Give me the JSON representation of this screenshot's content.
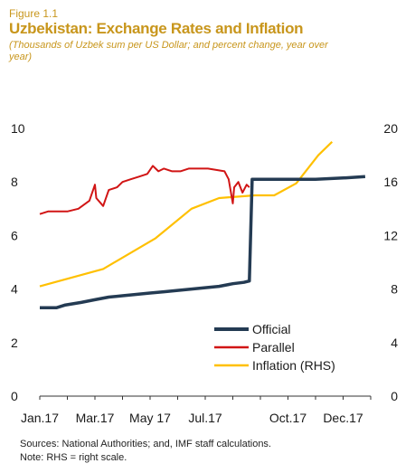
{
  "figure_label": "Figure 1.1",
  "title": "Uzbekistan: Exchange Rates and Inflation",
  "subtitle": "(Thousands of Uzbek sum per US Dollar; and percent change, year over year)",
  "source_lines": [
    "Sources: National Authorities;  and, IMF staff calculations.",
    "Note: RHS = right scale."
  ],
  "colors": {
    "official": "#243b53",
    "parallel": "#d11515",
    "inflation": "#ffc000",
    "text": "#1a1a1a"
  },
  "chart_data": {
    "type": "line",
    "x_tick_labels": [
      "Jan.17",
      "Mar.17",
      "May 17",
      "Jul.17",
      "Oct.17",
      "Dec.17"
    ],
    "x_tick_positions": [
      0,
      2,
      4,
      6,
      9,
      11
    ],
    "xlim": [
      0,
      12
    ],
    "ylim_left": [
      0,
      10
    ],
    "yticks_left": [
      "0",
      "2",
      "4",
      "6",
      "8",
      "10"
    ],
    "ylim_right": [
      0,
      20
    ],
    "yticks_right": [
      "0",
      "4",
      "8",
      "12",
      "16",
      "20"
    ],
    "legend_position": "bottom-right",
    "series": [
      {
        "name": "Official",
        "axis": "left",
        "points": [
          [
            0,
            3.3
          ],
          [
            0.6,
            3.3
          ],
          [
            0.9,
            3.4
          ],
          [
            1.5,
            3.5
          ],
          [
            2.0,
            3.6
          ],
          [
            2.5,
            3.7
          ],
          [
            3.0,
            3.75
          ],
          [
            3.5,
            3.8
          ],
          [
            4.0,
            3.85
          ],
          [
            4.5,
            3.9
          ],
          [
            5.0,
            3.95
          ],
          [
            5.5,
            4.0
          ],
          [
            6.0,
            4.05
          ],
          [
            6.5,
            4.1
          ],
          [
            7.0,
            4.2
          ],
          [
            7.4,
            4.25
          ],
          [
            7.6,
            4.3
          ],
          [
            7.7,
            8.1
          ],
          [
            8.5,
            8.1
          ],
          [
            9.0,
            8.1
          ],
          [
            10.0,
            8.1
          ],
          [
            11.0,
            8.15
          ],
          [
            11.8,
            8.2
          ]
        ]
      },
      {
        "name": "Parallel",
        "axis": "left",
        "points": [
          [
            0,
            6.8
          ],
          [
            0.3,
            6.9
          ],
          [
            0.6,
            6.9
          ],
          [
            1.0,
            6.9
          ],
          [
            1.4,
            7.0
          ],
          [
            1.8,
            7.3
          ],
          [
            2.0,
            7.9
          ],
          [
            2.05,
            7.4
          ],
          [
            2.3,
            7.1
          ],
          [
            2.5,
            7.7
          ],
          [
            2.8,
            7.8
          ],
          [
            3.0,
            8.0
          ],
          [
            3.3,
            8.1
          ],
          [
            3.6,
            8.2
          ],
          [
            3.9,
            8.3
          ],
          [
            4.1,
            8.6
          ],
          [
            4.3,
            8.4
          ],
          [
            4.5,
            8.5
          ],
          [
            4.8,
            8.4
          ],
          [
            5.1,
            8.4
          ],
          [
            5.4,
            8.5
          ],
          [
            5.8,
            8.5
          ],
          [
            6.1,
            8.5
          ],
          [
            6.4,
            8.45
          ],
          [
            6.7,
            8.4
          ],
          [
            6.85,
            8.1
          ],
          [
            7.0,
            7.2
          ],
          [
            7.05,
            7.8
          ],
          [
            7.2,
            8.0
          ],
          [
            7.35,
            7.6
          ],
          [
            7.5,
            7.9
          ],
          [
            7.6,
            7.8
          ]
        ]
      },
      {
        "name": "Inflation (RHS)",
        "axis": "right",
        "points": [
          [
            0,
            8.2
          ],
          [
            2.3,
            9.5
          ],
          [
            4.2,
            11.8
          ],
          [
            5.5,
            14.0
          ],
          [
            6.5,
            14.8
          ],
          [
            7.8,
            15.0
          ],
          [
            8.5,
            15.0
          ],
          [
            9.3,
            15.9
          ],
          [
            10.1,
            18.0
          ],
          [
            10.6,
            19.0
          ]
        ]
      }
    ]
  }
}
